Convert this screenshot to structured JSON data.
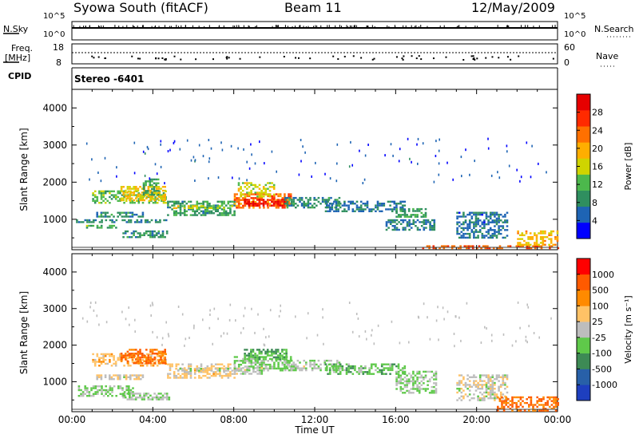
{
  "header": {
    "title": "Syowa South (fitACF)",
    "beam": "Beam 11",
    "date": "12/May/2009"
  },
  "panels": {
    "nsky": {
      "label": "N.Sky",
      "left_ticks": [
        "10^5",
        "10^0"
      ],
      "right_ticks": [
        "10^5",
        "10^0"
      ],
      "right_label": "N.Search"
    },
    "freq": {
      "label_line1": "Freq.",
      "label_line2": "[MHz]",
      "left_ticks": [
        "18",
        "8"
      ],
      "right_ticks": [
        "60",
        "0"
      ],
      "right_label": "Nave"
    },
    "cpid": {
      "label": "CPID",
      "value": "Stereo -6401"
    }
  },
  "colors": {
    "power_scale": [
      "#0000ff",
      "#1e64b4",
      "#2f8f5f",
      "#4cb84c",
      "#cfd400",
      "#ffae00",
      "#ff7000",
      "#ff2a00",
      "#e60000"
    ],
    "velocity_scale": [
      "#1e3fbf",
      "#2860a8",
      "#3d8a55",
      "#5fc94a",
      "#bdbdbd",
      "#ffc266",
      "#ff8a00",
      "#ff5a00",
      "#ff0000"
    ]
  },
  "chart_data": [
    {
      "type": "heatmap",
      "name": "power",
      "ylabel": "Slant Range [km]",
      "y_ticks": [
        1000,
        2000,
        3000,
        4000
      ],
      "ylim": [
        180,
        4500
      ],
      "x_ticks": [
        "00:00",
        "04:00",
        "08:00",
        "12:00",
        "16:00",
        "20:00",
        "00:00"
      ],
      "xlim_hours": [
        0,
        24
      ],
      "colorbar": {
        "label": "Power [dB]",
        "ticks": [
          "28",
          "24",
          "20",
          "16",
          "12",
          "8",
          "4"
        ],
        "range": [
          0,
          30
        ]
      },
      "regions": [
        {
          "t": [
            1.0,
            4.6
          ],
          "r": [
            1450,
            1780
          ],
          "value": 12
        },
        {
          "t": [
            2.4,
            4.6
          ],
          "r": [
            1500,
            1900
          ],
          "value": 17
        },
        {
          "t": [
            3.5,
            4.3
          ],
          "r": [
            1650,
            2100
          ],
          "value": 10
        },
        {
          "t": [
            1.2,
            3.5
          ],
          "r": [
            1050,
            1200
          ],
          "value": 8
        },
        {
          "t": [
            0.7,
            2.2
          ],
          "r": [
            750,
            850
          ],
          "value": 11
        },
        {
          "t": [
            0.2,
            4.8
          ],
          "r": [
            900,
            1000
          ],
          "value": 7
        },
        {
          "t": [
            2.5,
            4.8
          ],
          "r": [
            500,
            700
          ],
          "value": 8
        },
        {
          "t": [
            4.7,
            8.0
          ],
          "r": [
            1100,
            1500
          ],
          "value": 9
        },
        {
          "t": [
            5.0,
            8.2
          ],
          "r": [
            1280,
            1380
          ],
          "value": 15
        },
        {
          "t": [
            8.0,
            10.8
          ],
          "r": [
            1300,
            1700
          ],
          "value": 22
        },
        {
          "t": [
            8.2,
            10.0
          ],
          "r": [
            1600,
            2000
          ],
          "value": 15
        },
        {
          "t": [
            8.5,
            10.6
          ],
          "r": [
            1350,
            1550
          ],
          "value": 27
        },
        {
          "t": [
            10.5,
            13.2
          ],
          "r": [
            1300,
            1600
          ],
          "value": 8
        },
        {
          "t": [
            12.5,
            16.5
          ],
          "r": [
            1200,
            1500
          ],
          "value": 6
        },
        {
          "t": [
            16.0,
            17.5
          ],
          "r": [
            1050,
            1300
          ],
          "value": 9
        },
        {
          "t": [
            15.5,
            18.0
          ],
          "r": [
            700,
            1000
          ],
          "value": 7
        },
        {
          "t": [
            19.0,
            21.5
          ],
          "r": [
            500,
            1200
          ],
          "value": 6
        },
        {
          "t": [
            17.0,
            24.0
          ],
          "r": [
            200,
            300
          ],
          "value": 23
        },
        {
          "t": [
            22.0,
            24.0
          ],
          "r": [
            300,
            700
          ],
          "value": 18
        }
      ],
      "sparse_bands": [
        {
          "t": [
            0.5,
            23.8
          ],
          "r": [
            2000,
            3200
          ],
          "value": 4
        }
      ]
    },
    {
      "type": "heatmap",
      "name": "velocity",
      "ylabel": "Slant Range [km]",
      "xlabel": "Time UT",
      "y_ticks": [
        1000,
        2000,
        3000,
        4000
      ],
      "ylim": [
        180,
        4500
      ],
      "x_ticks": [
        "00:00",
        "04:00",
        "08:00",
        "12:00",
        "16:00",
        "20:00",
        "00:00"
      ],
      "xlim_hours": [
        0,
        24
      ],
      "colorbar": {
        "label": "Velocity [m s⁻¹]",
        "ticks": [
          "1000",
          "500",
          "100",
          "25",
          "-25",
          "-100",
          "-500",
          "-1000"
        ],
        "range": [
          -1200,
          1200
        ]
      },
      "regions": [
        {
          "t": [
            1.0,
            4.6
          ],
          "r": [
            1450,
            1780
          ],
          "value": 300
        },
        {
          "t": [
            2.4,
            4.6
          ],
          "r": [
            1500,
            1900
          ],
          "value": 700
        },
        {
          "t": [
            1.2,
            3.5
          ],
          "r": [
            1050,
            1200
          ],
          "value": 60
        },
        {
          "t": [
            0.3,
            3.0
          ],
          "r": [
            600,
            900
          ],
          "value": -150
        },
        {
          "t": [
            2.5,
            4.8
          ],
          "r": [
            500,
            700
          ],
          "value": -100
        },
        {
          "t": [
            4.7,
            8.0
          ],
          "r": [
            1100,
            1500
          ],
          "value": 200
        },
        {
          "t": [
            5.0,
            8.2
          ],
          "r": [
            1280,
            1380
          ],
          "value": 0
        },
        {
          "t": [
            8.0,
            10.8
          ],
          "r": [
            1300,
            1700
          ],
          "value": -150
        },
        {
          "t": [
            8.5,
            10.6
          ],
          "r": [
            1600,
            1900
          ],
          "value": -400
        },
        {
          "t": [
            8.0,
            9.5
          ],
          "r": [
            1200,
            1400
          ],
          "value": 0
        },
        {
          "t": [
            10.5,
            13.2
          ],
          "r": [
            1300,
            1600
          ],
          "value": -80
        },
        {
          "t": [
            12.5,
            16.5
          ],
          "r": [
            1200,
            1500
          ],
          "value": -300
        },
        {
          "t": [
            16.0,
            18.0
          ],
          "r": [
            700,
            1300
          ],
          "value": -150
        },
        {
          "t": [
            19.0,
            21.5
          ],
          "r": [
            500,
            1200
          ],
          "value": 40
        },
        {
          "t": [
            21.0,
            24.0
          ],
          "r": [
            200,
            600
          ],
          "value": 700
        }
      ],
      "sparse_bands": [
        {
          "t": [
            0.5,
            23.8
          ],
          "r": [
            2000,
            3200
          ],
          "value": -60
        }
      ]
    }
  ]
}
